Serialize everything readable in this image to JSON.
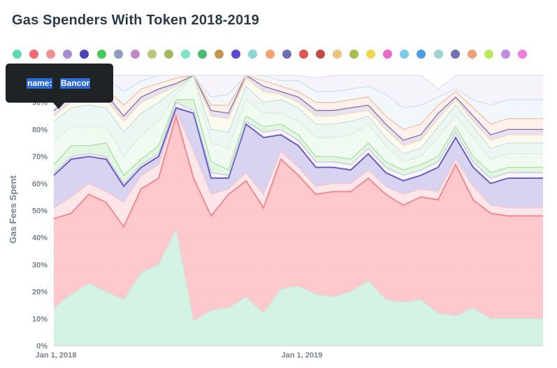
{
  "title": "Gas Spenders With Token 2018-2019",
  "tooltip": {
    "key": "name:",
    "value": "Bancor"
  },
  "legend_colors": [
    "#5fd9b4",
    "#ef6a6f",
    "#ee918f",
    "#a78ed0",
    "#4a44b8",
    "#47cc5c",
    "#8d9cbf",
    "#c186c6",
    "#b6c77b",
    "#9fb860",
    "#7ee3c8",
    "#4cbb6e",
    "#c2964f",
    "#5a48d2",
    "#8fd4d4",
    "#f2a271",
    "#6e6eb4",
    "#e35454",
    "#c44a4a",
    "#ecc37f",
    "#a4c04d",
    "#f1d44f",
    "#ec69c9",
    "#7dc9ea",
    "#4c9ee4",
    "#9ed1d2",
    "#6f73b6",
    "#ee9f74",
    "#b9ea5e",
    "#bf8ee2",
    "#eb7fd9"
  ],
  "chart_data": {
    "type": "area",
    "stacked": true,
    "normalized": true,
    "title": "Gas Spenders With Token 2018-2019",
    "ylabel": "Gas Fees Spent",
    "xlabel": "",
    "x_ticks": [
      "Jan 1, 2018",
      "Jan 1, 2019"
    ],
    "y_ticks": [
      "0%",
      "10%",
      "20%",
      "30%",
      "40%",
      "50%",
      "60%",
      "70%",
      "80%",
      "90%"
    ],
    "ylim": [
      0,
      100
    ],
    "grid": true,
    "legend_position": "top",
    "x": [
      "2017-11",
      "2017-12",
      "2018-01",
      "2018-02",
      "2018-03",
      "2018-04",
      "2018-05",
      "2018-06",
      "2018-07",
      "2018-08",
      "2018-09",
      "2018-10",
      "2018-11",
      "2018-12",
      "2019-01",
      "2019-02",
      "2019-03",
      "2019-04",
      "2019-05",
      "2019-06",
      "2019-07",
      "2019-08",
      "2019-09",
      "2019-10",
      "2019-11",
      "2019-12",
      "2020-01",
      "2020-02",
      "2020-03"
    ],
    "series": [
      {
        "name": "",
        "color": "#c7efdc",
        "values": [
          14,
          19,
          23,
          20,
          17,
          27,
          30,
          43,
          9,
          13,
          14,
          18,
          12,
          21,
          22,
          19,
          18,
          20,
          24,
          17,
          16,
          17,
          12,
          11,
          14,
          10,
          10,
          10,
          10
        ]
      },
      {
        "name": "",
        "color": "#ffb5bc",
        "values": [
          33,
          30,
          33,
          33,
          27,
          31,
          32,
          42,
          53,
          35,
          42,
          43,
          39,
          48,
          41,
          37,
          39,
          37,
          38,
          39,
          36,
          38,
          42,
          56,
          40,
          39,
          38,
          38,
          38
        ]
      },
      {
        "name": "",
        "color": "#fcdde3",
        "values": [
          4,
          6,
          4,
          4,
          9,
          5,
          5,
          2,
          10,
          8,
          2,
          3,
          5,
          3,
          3,
          3,
          3,
          3,
          3,
          3,
          4,
          3,
          3,
          2,
          5,
          3,
          3,
          3,
          3
        ]
      },
      {
        "name": "",
        "color": "#c9c4ec",
        "values": [
          12,
          14,
          10,
          12,
          6,
          3,
          3,
          1,
          14,
          6,
          4,
          18,
          21,
          6,
          8,
          7,
          6,
          5,
          6,
          5,
          5,
          5,
          9,
          8,
          7,
          8,
          11,
          11,
          11
        ]
      },
      {
        "name": "",
        "color": "#f5f2fc",
        "values": [
          1,
          1,
          1,
          1,
          1,
          1,
          1,
          2,
          1,
          2,
          1,
          1,
          2,
          2,
          2,
          2,
          2,
          2,
          2,
          2,
          2,
          2,
          2,
          2,
          2,
          2,
          2,
          2,
          2
        ]
      },
      {
        "name": "",
        "color": "#d8f4d5",
        "values": [
          3,
          4,
          3,
          5,
          3,
          2,
          3,
          1,
          4,
          4,
          2,
          2,
          2,
          2,
          2,
          2,
          2,
          2,
          2,
          2,
          2,
          2,
          2,
          2,
          2,
          2,
          2,
          2,
          2
        ]
      },
      {
        "name": "",
        "color": "#ecf8ec",
        "values": [
          9,
          7,
          7,
          6,
          7,
          9,
          9,
          2,
          9,
          7,
          8,
          6,
          5,
          4,
          5,
          7,
          7,
          9,
          7,
          6,
          3,
          3,
          7,
          4,
          7,
          5,
          5,
          5,
          5
        ]
      },
      {
        "name": "",
        "color": "#e7f3ee",
        "values": [
          7,
          7,
          8,
          7,
          9,
          8,
          7,
          2,
          5,
          5,
          6,
          5,
          4,
          5,
          5,
          5,
          5,
          5,
          3,
          3,
          3,
          3,
          4,
          4,
          4,
          4,
          4,
          4,
          4
        ]
      },
      {
        "name": "",
        "color": "#fbf7ec",
        "values": [
          2,
          2,
          2,
          3,
          4,
          4,
          3,
          1,
          2,
          5,
          5,
          3,
          4,
          2,
          2,
          3,
          3,
          3,
          2,
          3,
          3,
          3,
          3,
          2,
          2,
          3,
          3,
          3,
          3
        ]
      },
      {
        "name": "",
        "color": "#dcd6ee",
        "values": [
          2,
          2,
          2,
          2,
          2,
          2,
          2,
          1,
          1,
          2,
          2,
          1,
          2,
          1,
          2,
          2,
          2,
          2,
          2,
          2,
          2,
          2,
          2,
          1,
          2,
          2,
          2,
          2,
          2
        ]
      },
      {
        "name": "",
        "color": "#fdebe4",
        "values": [
          2,
          2,
          2,
          2,
          4,
          3,
          2,
          2,
          2,
          2,
          3,
          2,
          2,
          2,
          2,
          3,
          3,
          3,
          3,
          3,
          4,
          4,
          3,
          2,
          3,
          4,
          4,
          4,
          4
        ]
      },
      {
        "name": "",
        "color": "#eef4fb",
        "values": [
          5,
          4,
          4,
          4,
          5,
          3,
          3,
          1,
          2,
          3,
          4,
          2,
          4,
          2,
          4,
          4,
          4,
          4,
          4,
          8,
          8,
          7,
          3,
          1,
          3,
          7,
          7,
          7,
          7
        ]
      },
      {
        "name": "",
        "color": "#f3eff8",
        "values": [
          6,
          2,
          1,
          1,
          6,
          2,
          1,
          0,
          4,
          8,
          7,
          2,
          3,
          2,
          2,
          5,
          6,
          5,
          4,
          9,
          12,
          11,
          3,
          5,
          9,
          11,
          9,
          9,
          9
        ]
      }
    ]
  }
}
